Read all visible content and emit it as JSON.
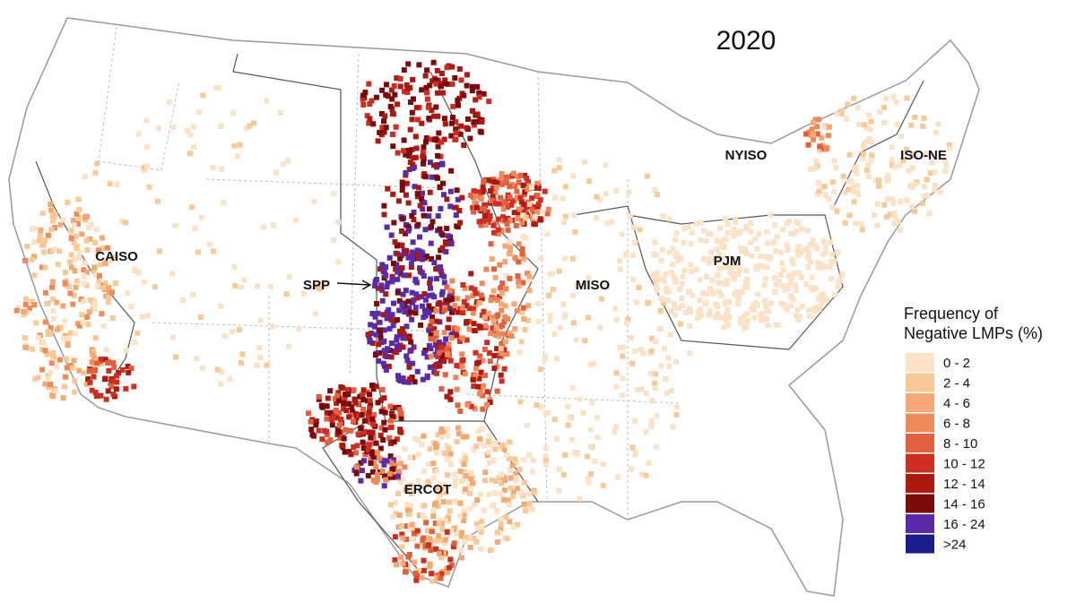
{
  "title": "2020",
  "regions": [
    {
      "label": "CAISO"
    },
    {
      "label": "SPP"
    },
    {
      "label": "MISO"
    },
    {
      "label": "NYISO"
    },
    {
      "label": "ISO-NE"
    },
    {
      "label": "PJM"
    },
    {
      "label": "ERCOT"
    }
  ],
  "legend": {
    "title_lines": [
      "Frequency of",
      "Negative LMPs (%)"
    ],
    "items": [
      {
        "label": "0 - 2",
        "color": "#fbe2c6"
      },
      {
        "label": "2 - 4",
        "color": "#f8c896"
      },
      {
        "label": "4 - 6",
        "color": "#f4a873"
      },
      {
        "label": "6 - 8",
        "color": "#ee8a5a"
      },
      {
        "label": "8 - 10",
        "color": "#e3603f"
      },
      {
        "label": "10 - 12",
        "color": "#cd2e22"
      },
      {
        "label": "12 - 14",
        "color": "#ac1910"
      },
      {
        "label": "14 - 16",
        "color": "#7b0a0a"
      },
      {
        "label": "16 - 24",
        "color": "#5a2ba8"
      },
      {
        "label": ">24",
        "color": "#1b1b8c"
      }
    ]
  }
}
